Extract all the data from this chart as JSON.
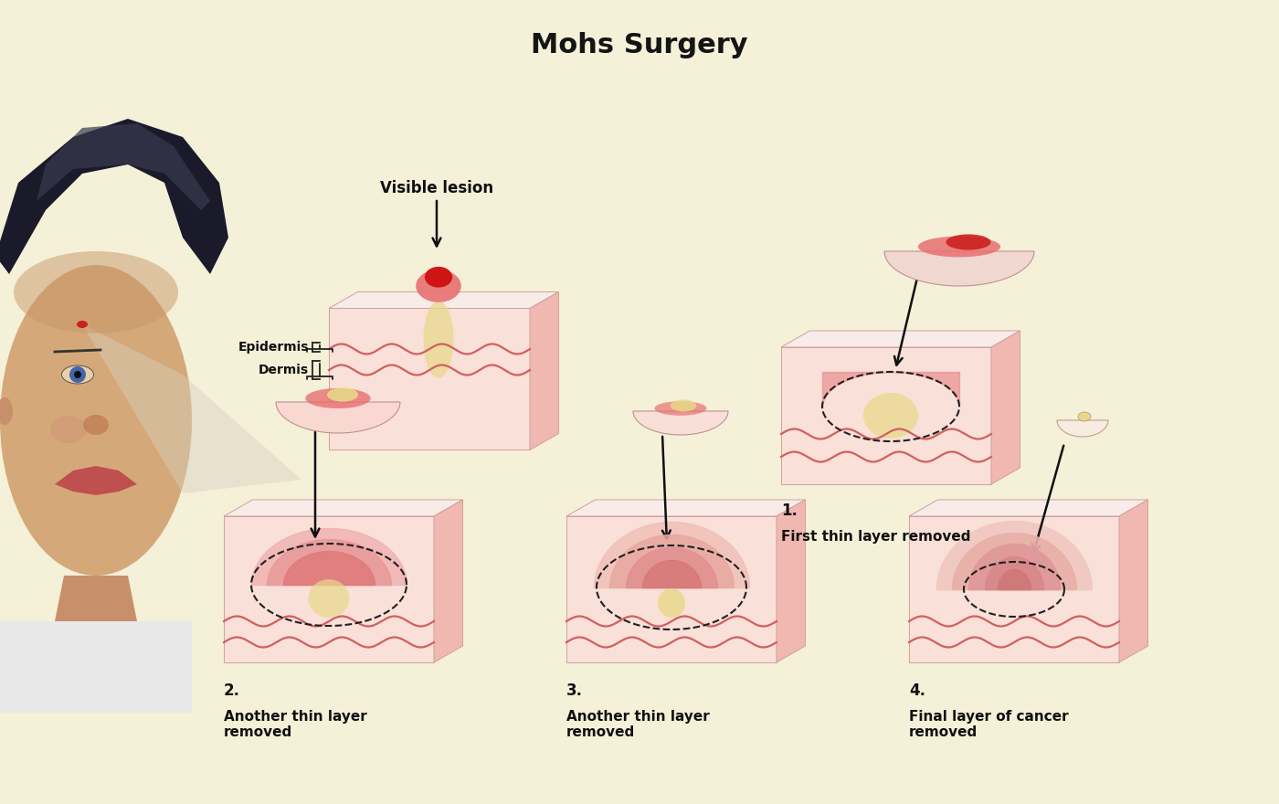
{
  "title": "Mohs Surgery",
  "background_color": "#f5f0d8",
  "title_fontsize": 22,
  "title_fontweight": "bold",
  "skin_color_light": "#f9e0d8",
  "skin_color_mid": "#f0b8b0",
  "skin_color_dark": "#e89090",
  "dermis_color": "#f5c8c0",
  "epidermis_color": "#f0d0c8",
  "lesion_red": "#cc2020",
  "lesion_pink": "#e87070",
  "cancer_yellow": "#e8d888",
  "wave_color": "#d06060",
  "dashed_color": "#202020",
  "removed_layer_color": "#f0d8d0",
  "bracket_color": "#202020",
  "arrow_color": "#101010",
  "label_color": "#101010",
  "step_labels": [
    "1.\nFirst thin layer removed",
    "2.\nAnother thin layer\nremoved",
    "3.\nAnother thin layer\nremoved",
    "4.\nFinal layer of cancer\nremoved"
  ],
  "epidermis_label": "Epidermis",
  "dermis_label": "Dermis",
  "visible_lesion_label": "Visible lesion"
}
